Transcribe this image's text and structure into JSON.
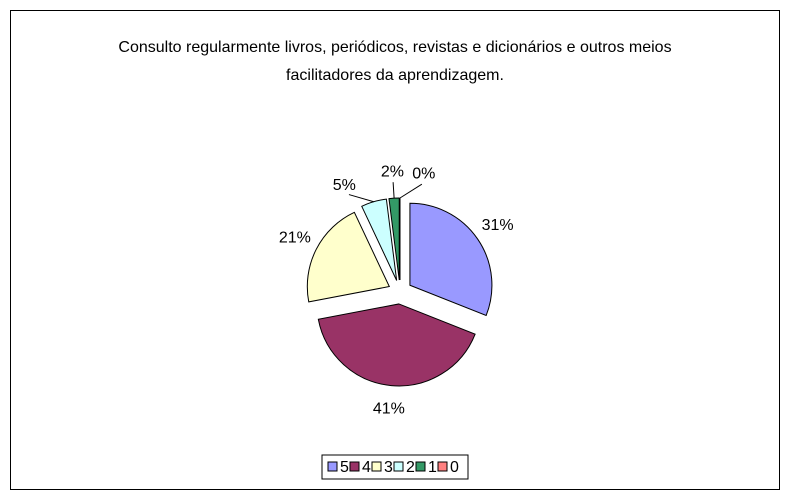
{
  "chart_data": {
    "type": "pie",
    "title": "Consulto regularmente livros, periódicos, revistas e dicionários e outros meios facilitadores da aprendizagem.",
    "categories": [
      "5",
      "4",
      "3",
      "2",
      "1",
      "0"
    ],
    "values": [
      31,
      41,
      21,
      5,
      2,
      0
    ],
    "value_labels": [
      "31%",
      "41%",
      "21%",
      "5%",
      "2%",
      "0%"
    ],
    "colors": [
      "#9999ff",
      "#993366",
      "#ffffcc",
      "#ccffff",
      "#339966",
      "#ff8080"
    ],
    "legend": "bottom"
  }
}
